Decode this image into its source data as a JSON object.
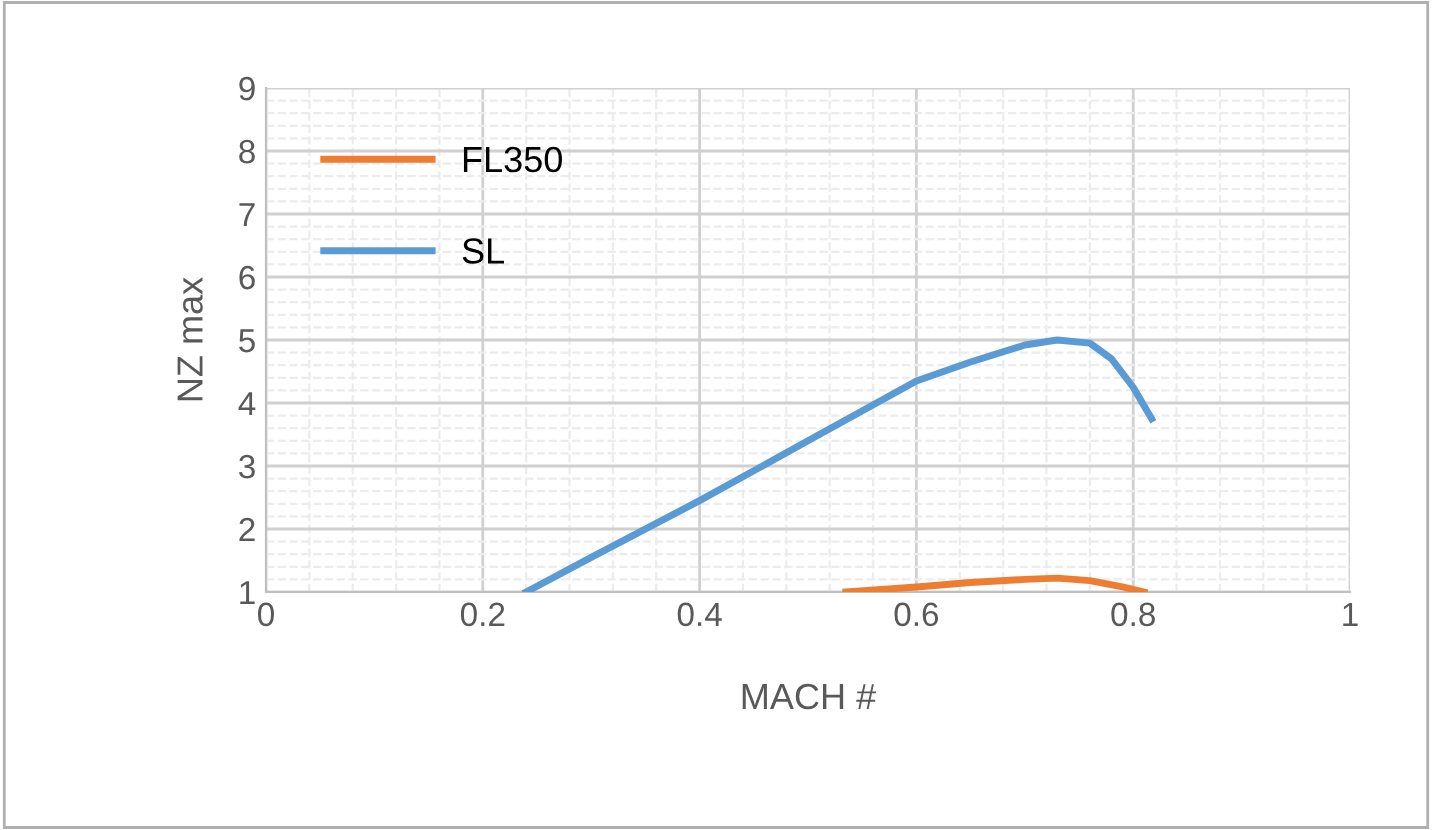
{
  "chart_data": {
    "type": "line",
    "xlabel": "MACH #",
    "ylabel": "NZ max",
    "xlim": [
      0,
      1
    ],
    "ylim": [
      1,
      9
    ],
    "xticks": [
      0,
      0.2,
      0.4,
      0.6,
      0.8,
      1
    ],
    "yticks": [
      1,
      2,
      3,
      4,
      5,
      6,
      7,
      8,
      9
    ],
    "grid": true,
    "legend": "top left",
    "marker": "none",
    "line_style": "solid",
    "series": [
      {
        "name": "FL350",
        "color": "#ed7d31",
        "x": [
          0.535,
          0.6,
          0.65,
          0.7,
          0.73,
          0.76,
          0.79,
          0.81
        ],
        "values": [
          1,
          1.08,
          1.15,
          1.2,
          1.22,
          1.18,
          1.08,
          1
        ]
      },
      {
        "name": "SL",
        "color": "#5b9bd5",
        "x": [
          0.24,
          0.3,
          0.4,
          0.5,
          0.6,
          0.65,
          0.7,
          0.73,
          0.76,
          0.78,
          0.8,
          0.817
        ],
        "values": [
          1,
          1.55,
          2.45,
          3.4,
          4.35,
          4.65,
          4.92,
          5.0,
          4.95,
          4.7,
          4.25,
          3.75
        ]
      }
    ]
  }
}
